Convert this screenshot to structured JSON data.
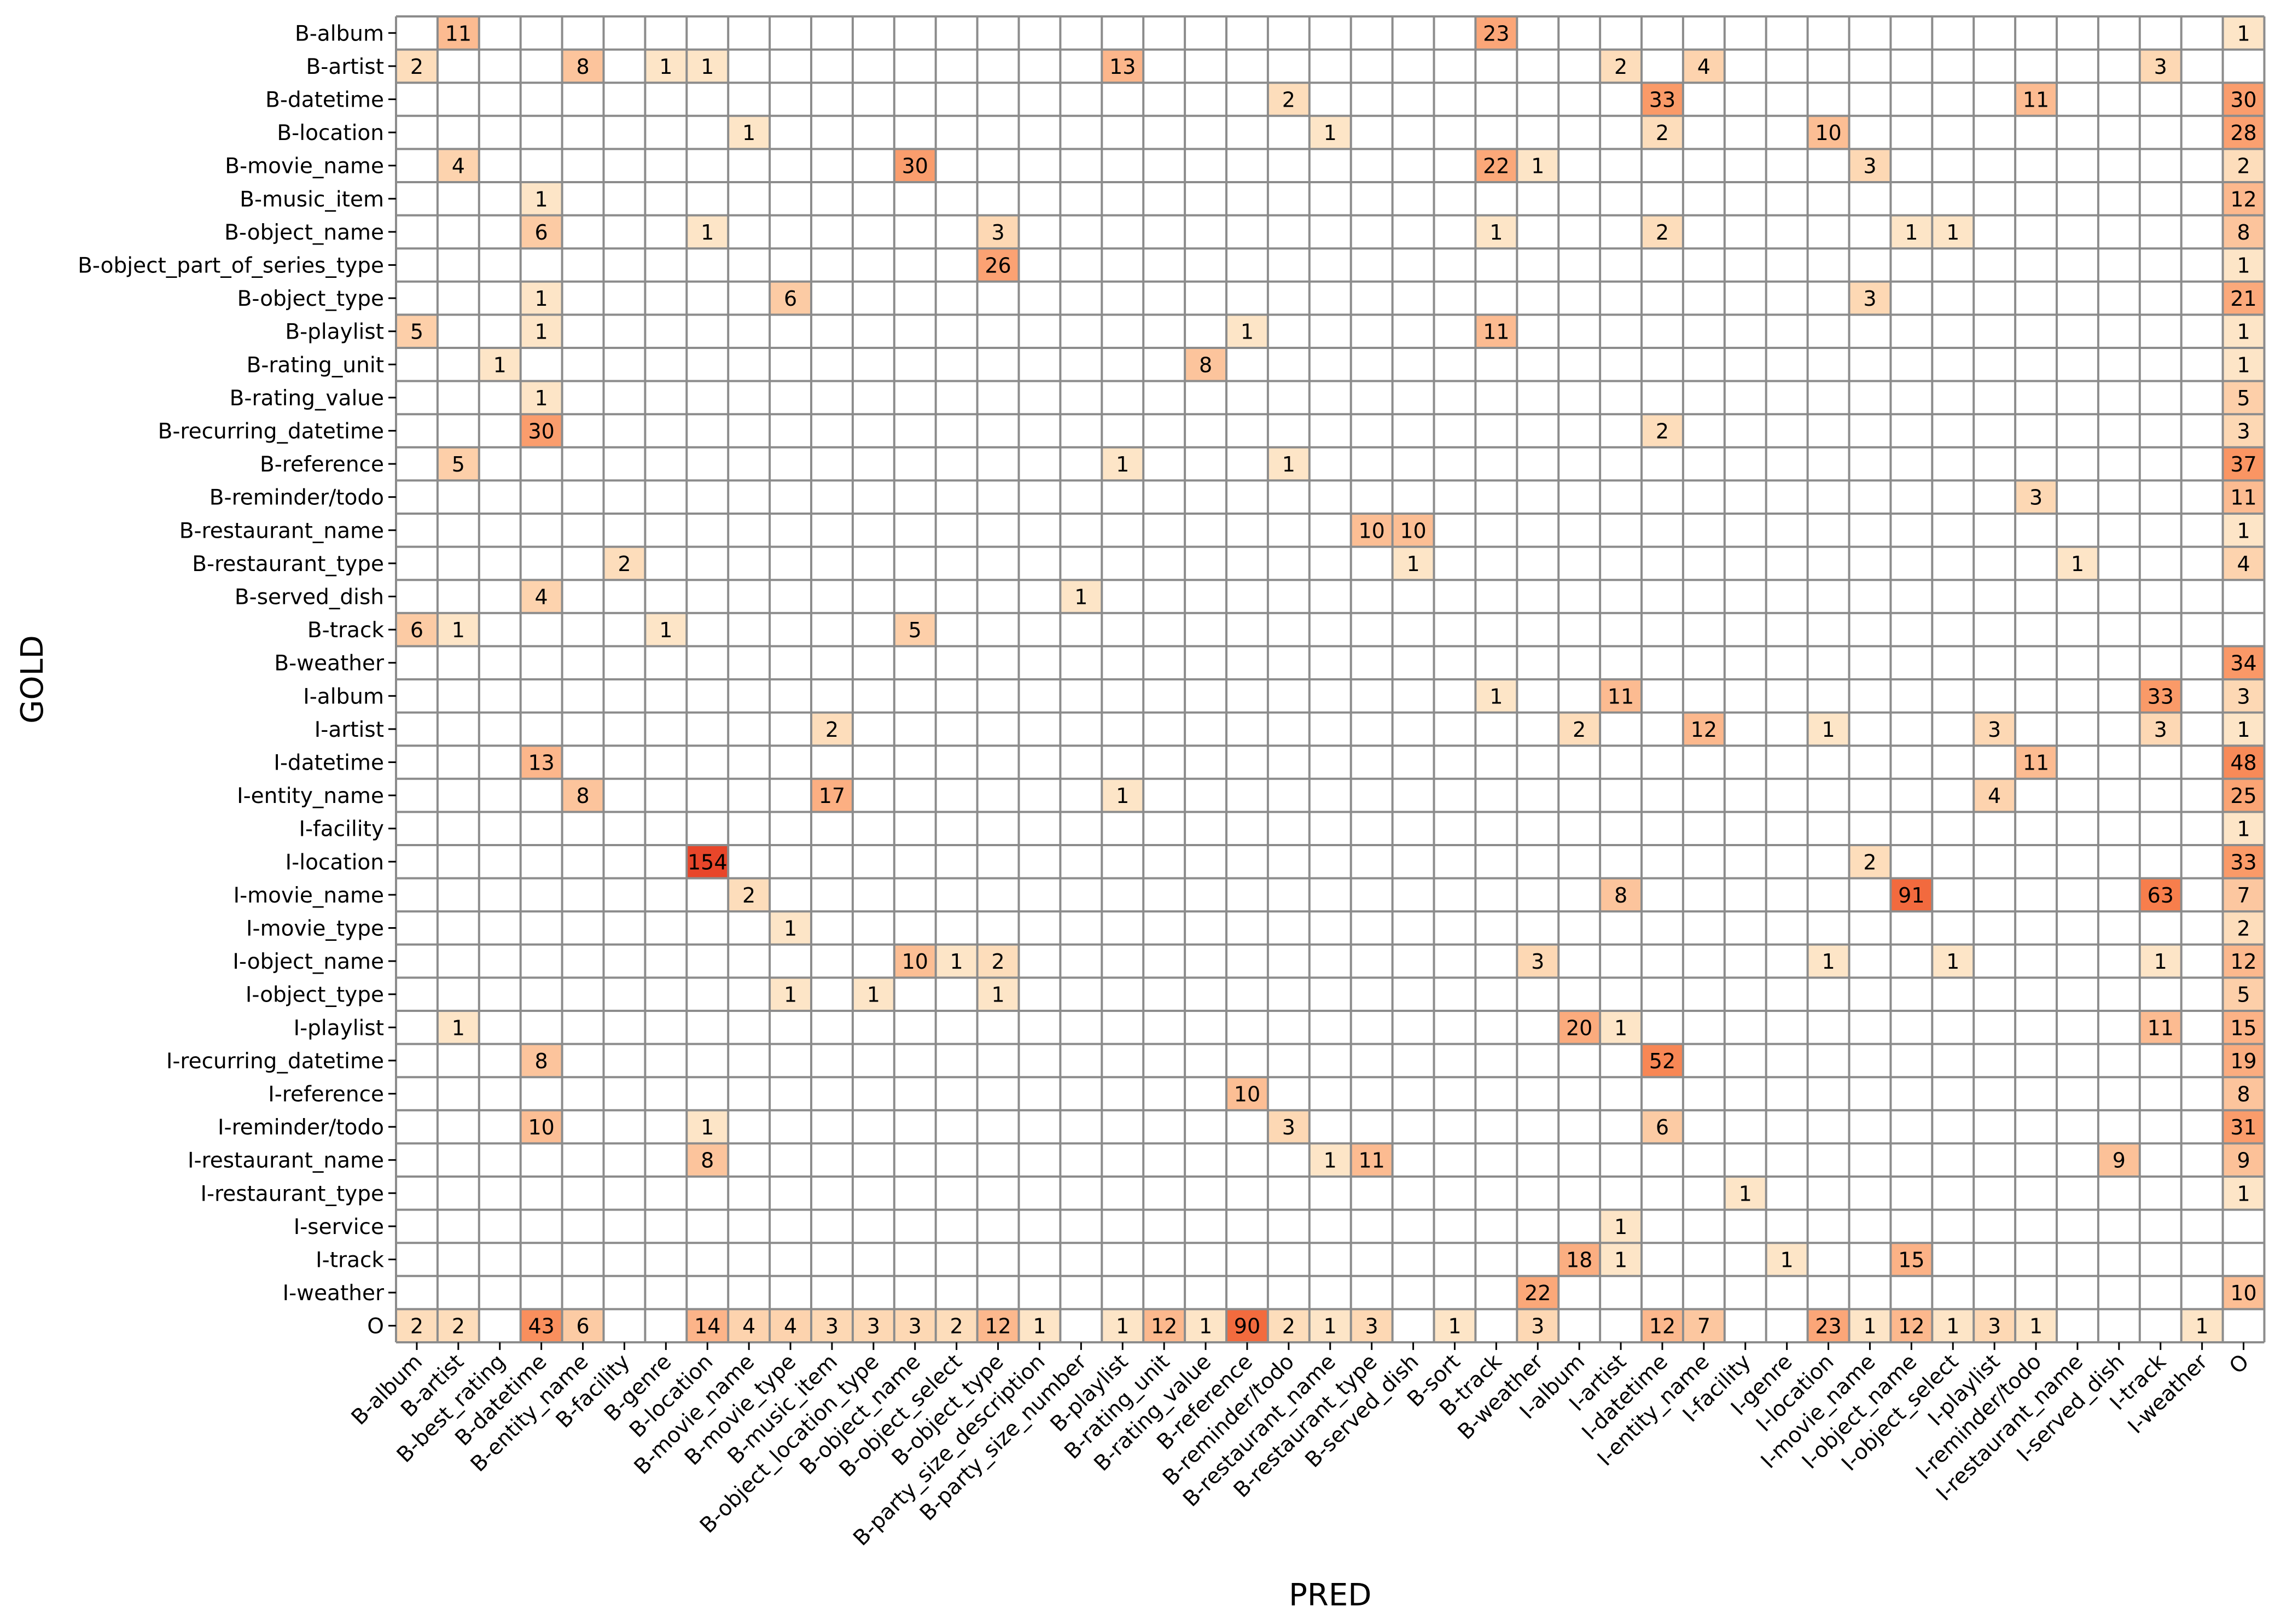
{
  "chart_data": {
    "type": "heatmap",
    "xlabel": "PRED",
    "ylabel": "GOLD",
    "colormap": "white-to-orange-red",
    "color_low": "#fff5e6",
    "color_high": "#e8462a",
    "grid_color": "#8c8c8c",
    "x_labels": [
      "B-album",
      "B-artist",
      "B-best_rating",
      "B-datetime",
      "B-entity_name",
      "B-facility",
      "B-genre",
      "B-location",
      "B-movie_name",
      "B-movie_type",
      "B-music_item",
      "B-object_location_type",
      "B-object_name",
      "B-object_select",
      "B-object_type",
      "B-party_size_description",
      "B-party_size_number",
      "B-playlist",
      "B-rating_unit",
      "B-rating_value",
      "B-reference",
      "B-reminder/todo",
      "B-restaurant_name",
      "B-restaurant_type",
      "B-served_dish",
      "B-sort",
      "B-track",
      "B-weather",
      "I-album",
      "I-artist",
      "I-datetime",
      "I-entity_name",
      "I-facility",
      "I-genre",
      "I-location",
      "I-movie_name",
      "I-object_name",
      "I-object_select",
      "I-playlist",
      "I-reminder/todo",
      "I-restaurant_name",
      "I-served_dish",
      "I-track",
      "I-weather",
      "O"
    ],
    "y_labels": [
      "B-album",
      "B-artist",
      "B-datetime",
      "B-location",
      "B-movie_name",
      "B-music_item",
      "B-object_name",
      "B-object_part_of_series_type",
      "B-object_type",
      "B-playlist",
      "B-rating_unit",
      "B-rating_value",
      "B-recurring_datetime",
      "B-reference",
      "B-reminder/todo",
      "B-restaurant_name",
      "B-restaurant_type",
      "B-served_dish",
      "B-track",
      "B-weather",
      "I-album",
      "I-artist",
      "I-datetime",
      "I-entity_name",
      "I-facility",
      "I-location",
      "I-movie_name",
      "I-movie_type",
      "I-object_name",
      "I-object_type",
      "I-playlist",
      "I-recurring_datetime",
      "I-reference",
      "I-reminder/todo",
      "I-restaurant_name",
      "I-restaurant_type",
      "I-service",
      "I-track",
      "I-weather",
      "O"
    ],
    "cells": [
      [
        0,
        1,
        11
      ],
      [
        0,
        26,
        23
      ],
      [
        0,
        44,
        1
      ],
      [
        1,
        0,
        2
      ],
      [
        1,
        4,
        8
      ],
      [
        1,
        6,
        1
      ],
      [
        1,
        7,
        1
      ],
      [
        1,
        17,
        13
      ],
      [
        1,
        29,
        2
      ],
      [
        1,
        31,
        4
      ],
      [
        1,
        42,
        3
      ],
      [
        2,
        21,
        2
      ],
      [
        2,
        30,
        33
      ],
      [
        2,
        39,
        11
      ],
      [
        2,
        44,
        30
      ],
      [
        3,
        8,
        1
      ],
      [
        3,
        22,
        1
      ],
      [
        3,
        30,
        2
      ],
      [
        3,
        34,
        10
      ],
      [
        3,
        44,
        28
      ],
      [
        4,
        1,
        4
      ],
      [
        4,
        12,
        30
      ],
      [
        4,
        26,
        22
      ],
      [
        4,
        27,
        1
      ],
      [
        4,
        35,
        3
      ],
      [
        4,
        44,
        2
      ],
      [
        5,
        3,
        1
      ],
      [
        5,
        44,
        12
      ],
      [
        6,
        3,
        6
      ],
      [
        6,
        7,
        1
      ],
      [
        6,
        14,
        3
      ],
      [
        6,
        26,
        1
      ],
      [
        6,
        30,
        2
      ],
      [
        6,
        36,
        1
      ],
      [
        6,
        37,
        1
      ],
      [
        6,
        44,
        8
      ],
      [
        7,
        14,
        26
      ],
      [
        7,
        44,
        1
      ],
      [
        8,
        3,
        1
      ],
      [
        8,
        9,
        6
      ],
      [
        8,
        35,
        3
      ],
      [
        8,
        44,
        21
      ],
      [
        9,
        0,
        5
      ],
      [
        9,
        3,
        1
      ],
      [
        9,
        20,
        1
      ],
      [
        9,
        26,
        11
      ],
      [
        9,
        44,
        1
      ],
      [
        10,
        2,
        1
      ],
      [
        10,
        19,
        8
      ],
      [
        10,
        44,
        1
      ],
      [
        11,
        3,
        1
      ],
      [
        11,
        44,
        5
      ],
      [
        12,
        3,
        30
      ],
      [
        12,
        30,
        2
      ],
      [
        12,
        44,
        3
      ],
      [
        13,
        1,
        5
      ],
      [
        13,
        17,
        1
      ],
      [
        13,
        21,
        1
      ],
      [
        13,
        44,
        37
      ],
      [
        14,
        39,
        3
      ],
      [
        14,
        44,
        11
      ],
      [
        15,
        23,
        10
      ],
      [
        15,
        24,
        10
      ],
      [
        15,
        44,
        1
      ],
      [
        16,
        5,
        2
      ],
      [
        16,
        24,
        1
      ],
      [
        16,
        40,
        1
      ],
      [
        16,
        44,
        4
      ],
      [
        17,
        3,
        4
      ],
      [
        17,
        16,
        1
      ],
      [
        18,
        0,
        6
      ],
      [
        18,
        1,
        1
      ],
      [
        18,
        6,
        1
      ],
      [
        18,
        12,
        5
      ],
      [
        19,
        44,
        34
      ],
      [
        20,
        26,
        1
      ],
      [
        20,
        29,
        11
      ],
      [
        20,
        42,
        33
      ],
      [
        20,
        44,
        3
      ],
      [
        21,
        10,
        2
      ],
      [
        21,
        28,
        2
      ],
      [
        21,
        31,
        12
      ],
      [
        21,
        34,
        1
      ],
      [
        21,
        38,
        3
      ],
      [
        21,
        42,
        3
      ],
      [
        21,
        44,
        1
      ],
      [
        22,
        3,
        13
      ],
      [
        22,
        39,
        11
      ],
      [
        22,
        44,
        48
      ],
      [
        23,
        4,
        8
      ],
      [
        23,
        10,
        17
      ],
      [
        23,
        17,
        1
      ],
      [
        23,
        38,
        4
      ],
      [
        23,
        44,
        25
      ],
      [
        24,
        44,
        1
      ],
      [
        25,
        7,
        154
      ],
      [
        25,
        35,
        2
      ],
      [
        25,
        44,
        33
      ],
      [
        26,
        8,
        2
      ],
      [
        26,
        29,
        8
      ],
      [
        26,
        36,
        91
      ],
      [
        26,
        42,
        63
      ],
      [
        26,
        44,
        7
      ],
      [
        27,
        9,
        1
      ],
      [
        27,
        44,
        2
      ],
      [
        28,
        12,
        10
      ],
      [
        28,
        13,
        1
      ],
      [
        28,
        14,
        2
      ],
      [
        28,
        27,
        3
      ],
      [
        28,
        34,
        1
      ],
      [
        28,
        37,
        1
      ],
      [
        28,
        42,
        1
      ],
      [
        28,
        44,
        12
      ],
      [
        29,
        9,
        1
      ],
      [
        29,
        11,
        1
      ],
      [
        29,
        14,
        1
      ],
      [
        29,
        44,
        5
      ],
      [
        30,
        1,
        1
      ],
      [
        30,
        28,
        20
      ],
      [
        30,
        29,
        1
      ],
      [
        30,
        42,
        11
      ],
      [
        30,
        44,
        15
      ],
      [
        31,
        3,
        8
      ],
      [
        31,
        30,
        52
      ],
      [
        31,
        44,
        19
      ],
      [
        32,
        20,
        10
      ],
      [
        32,
        44,
        8
      ],
      [
        33,
        3,
        10
      ],
      [
        33,
        7,
        1
      ],
      [
        33,
        21,
        3
      ],
      [
        33,
        30,
        6
      ],
      [
        33,
        44,
        31
      ],
      [
        34,
        7,
        8
      ],
      [
        34,
        22,
        1
      ],
      [
        34,
        23,
        11
      ],
      [
        34,
        41,
        9
      ],
      [
        34,
        44,
        9
      ],
      [
        35,
        32,
        1
      ],
      [
        35,
        44,
        1
      ],
      [
        36,
        29,
        1
      ],
      [
        37,
        28,
        18
      ],
      [
        37,
        29,
        1
      ],
      [
        37,
        33,
        1
      ],
      [
        37,
        36,
        15
      ],
      [
        38,
        27,
        22
      ],
      [
        38,
        44,
        10
      ],
      [
        39,
        0,
        2
      ],
      [
        39,
        1,
        2
      ],
      [
        39,
        3,
        43
      ],
      [
        39,
        4,
        6
      ],
      [
        39,
        7,
        14
      ],
      [
        39,
        8,
        4
      ],
      [
        39,
        9,
        4
      ],
      [
        39,
        10,
        3
      ],
      [
        39,
        11,
        3
      ],
      [
        39,
        12,
        3
      ],
      [
        39,
        13,
        2
      ],
      [
        39,
        14,
        12
      ],
      [
        39,
        15,
        1
      ],
      [
        39,
        17,
        1
      ],
      [
        39,
        18,
        12
      ],
      [
        39,
        19,
        1
      ],
      [
        39,
        20,
        90
      ],
      [
        39,
        21,
        2
      ],
      [
        39,
        22,
        1
      ],
      [
        39,
        23,
        3
      ],
      [
        39,
        25,
        1
      ],
      [
        39,
        27,
        3
      ],
      [
        39,
        30,
        12
      ],
      [
        39,
        31,
        7
      ],
      [
        39,
        34,
        23
      ],
      [
        39,
        35,
        1
      ],
      [
        39,
        36,
        12
      ],
      [
        39,
        37,
        1
      ],
      [
        39,
        38,
        3
      ],
      [
        39,
        39,
        1
      ],
      [
        39,
        43,
        1
      ]
    ]
  }
}
